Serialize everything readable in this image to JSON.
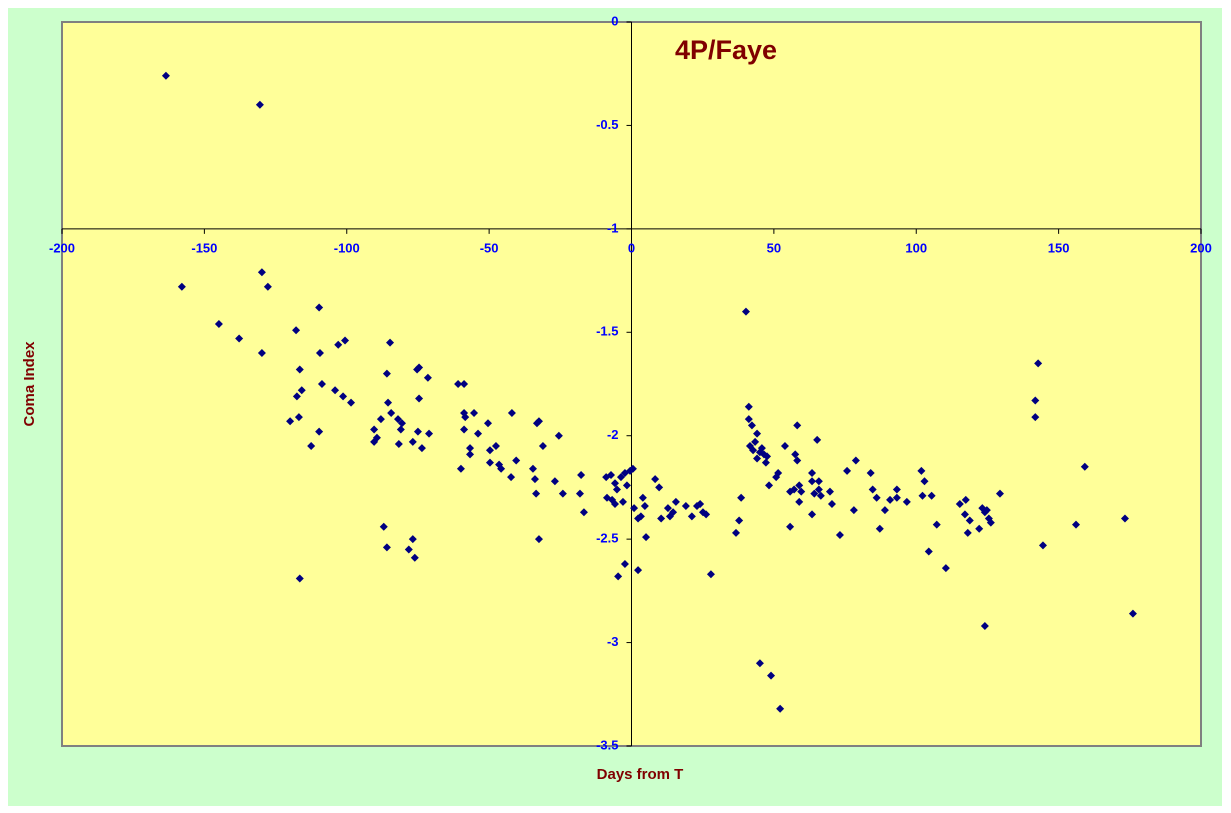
{
  "chart_data": {
    "type": "scatter",
    "title": "4P/Faye",
    "xlabel": "Days from T",
    "ylabel": "Coma Index",
    "xlim": [
      -200,
      200
    ],
    "ylim": [
      -3.5,
      0
    ],
    "xticks": [
      -200,
      -150,
      -100,
      -50,
      0,
      50,
      100,
      150,
      200
    ],
    "yticks": [
      0,
      -0.5,
      -1,
      -1.5,
      -2,
      -2.5,
      -3,
      -3.5
    ],
    "color": "#000080",
    "x": [
      -163.5,
      -130.5,
      -129.8,
      -127.7,
      -129.8,
      -157.9,
      -144.9,
      -137.8,
      -117.8,
      -109.7,
      -116.5,
      -115.8,
      -117.5,
      -109.4,
      -108.7,
      -104.1,
      -103.0,
      -100.6,
      -101.3,
      -98.5,
      -116.8,
      -119.9,
      -109.7,
      -112.5,
      -116.5,
      -84.8,
      -85.9,
      -85.5,
      -84.4,
      -88.0,
      -90.4,
      -89.4,
      -90.4,
      -82.0,
      -80.6,
      -81.0,
      -81.7,
      -75.3,
      -74.6,
      -71.5,
      -74.6,
      -75.0,
      -71.1,
      -76.8,
      -73.6,
      -87.0,
      -85.9,
      -76.8,
      -78.2,
      -76.1,
      -60.9,
      -58.8,
      -58.8,
      -58.4,
      -55.3,
      -58.8,
      -56.7,
      -56.7,
      -59.9,
      -53.9,
      -50.4,
      -49.7,
      -49.7,
      -47.6,
      -46.5,
      -45.8,
      -42.0,
      -42.3,
      -40.5,
      -32.5,
      -33.2,
      -31.1,
      -25.5,
      -34.6,
      -33.9,
      -33.5,
      -26.9,
      -24.1,
      -32.5,
      -17.7,
      -18.1,
      -16.7,
      -8.9,
      -8.6,
      -6.8,
      -7.2,
      -5.8,
      -5.1,
      -3.7,
      -2.3,
      -1.6,
      -3.0,
      -0.5,
      -5.8,
      0.5,
      -4.7,
      -2.3,
      2.3,
      2.3,
      3.3,
      4.0,
      4.7,
      0.9,
      5.1,
      8.3,
      9.7,
      10.4,
      12.8,
      13.5,
      14.6,
      15.6,
      19.1,
      21.2,
      23.0,
      24.1,
      25.1,
      26.2,
      27.9,
      36.7,
      37.8,
      38.5,
      40.2,
      41.2,
      41.2,
      42.3,
      41.6,
      42.7,
      43.4,
      44.1,
      44.1,
      45.1,
      45.8,
      46.5,
      47.2,
      47.6,
      48.3,
      45.1,
      49.0,
      52.2,
      50.8,
      51.5,
      53.9,
      55.7,
      55.7,
      57.1,
      58.2,
      57.5,
      58.2,
      58.9,
      59.6,
      58.9,
      63.4,
      63.4,
      64.2,
      63.4,
      65.2,
      65.8,
      65.8,
      66.5,
      69.7,
      70.4,
      73.2,
      75.7,
      78.8,
      78.1,
      84.0,
      84.7,
      86.1,
      87.2,
      89.0,
      90.8,
      93.2,
      93.2,
      96.7,
      101.8,
      102.9,
      102.2,
      105.4,
      104.4,
      107.2,
      110.4,
      115.3,
      117.4,
      117.1,
      118.8,
      118.1,
      122.1,
      123.2,
      124.1,
      124.8,
      125.5,
      124.1,
      126.2,
      129.4,
      141.8,
      141.8,
      142.8,
      144.5,
      156.1,
      159.2,
      173.3,
      176.1
    ],
    "values": [
      -0.26,
      -0.4,
      -1.21,
      -1.28,
      -1.6,
      -1.28,
      -1.46,
      -1.53,
      -1.49,
      -1.38,
      -1.68,
      -1.78,
      -1.81,
      -1.6,
      -1.75,
      -1.78,
      -1.56,
      -1.54,
      -1.81,
      -1.84,
      -1.91,
      -1.93,
      -1.98,
      -2.05,
      -2.69,
      -1.55,
      -1.7,
      -1.84,
      -1.89,
      -1.92,
      -1.97,
      -2.01,
      -2.03,
      -1.92,
      -1.94,
      -1.97,
      -2.04,
      -1.68,
      -1.67,
      -1.72,
      -1.82,
      -1.98,
      -1.99,
      -2.03,
      -2.06,
      -2.44,
      -2.54,
      -2.5,
      -2.55,
      -2.59,
      -1.75,
      -1.75,
      -1.89,
      -1.91,
      -1.89,
      -1.97,
      -2.06,
      -2.09,
      -2.16,
      -1.99,
      -1.94,
      -2.07,
      -2.13,
      -2.05,
      -2.14,
      -2.16,
      -1.89,
      -2.2,
      -2.12,
      -1.93,
      -1.94,
      -2.05,
      -2.0,
      -2.16,
      -2.21,
      -2.28,
      -2.22,
      -2.28,
      -2.5,
      -2.19,
      -2.28,
      -2.37,
      -2.2,
      -2.3,
      -2.31,
      -2.19,
      -2.23,
      -2.26,
      -2.2,
      -2.18,
      -2.24,
      -2.32,
      -2.17,
      -2.33,
      -2.16,
      -2.68,
      -2.62,
      -2.65,
      -2.4,
      -2.39,
      -2.3,
      -2.34,
      -2.35,
      -2.49,
      -2.21,
      -2.25,
      -2.4,
      -2.35,
      -2.39,
      -2.37,
      -2.32,
      -2.34,
      -2.39,
      -2.34,
      -2.33,
      -2.37,
      -2.38,
      -2.67,
      -2.47,
      -2.41,
      -2.3,
      -1.4,
      -1.86,
      -1.92,
      -1.95,
      -2.05,
      -2.07,
      -2.03,
      -1.99,
      -2.11,
      -2.08,
      -2.06,
      -2.09,
      -2.13,
      -2.1,
      -2.24,
      -3.1,
      -3.16,
      -3.32,
      -2.2,
      -2.18,
      -2.05,
      -2.27,
      -2.44,
      -2.26,
      -1.95,
      -2.09,
      -2.12,
      -2.24,
      -2.27,
      -2.32,
      -2.18,
      -2.22,
      -2.28,
      -2.38,
      -2.02,
      -2.22,
      -2.26,
      -2.29,
      -2.27,
      -2.33,
      -2.48,
      -2.17,
      -2.12,
      -2.36,
      -2.18,
      -2.26,
      -2.3,
      -2.45,
      -2.36,
      -2.31,
      -2.26,
      -2.3,
      -2.32,
      -2.17,
      -2.22,
      -2.29,
      -2.29,
      -2.56,
      -2.43,
      -2.64,
      -2.33,
      -2.31,
      -2.38,
      -2.41,
      -2.47,
      -2.45,
      -2.35,
      -2.37,
      -2.36,
      -2.4,
      -2.92,
      -2.42,
      -2.28,
      -1.83,
      -1.91,
      -1.65,
      -2.53,
      -2.43,
      -2.15,
      -2.4,
      -2.86
    ]
  }
}
